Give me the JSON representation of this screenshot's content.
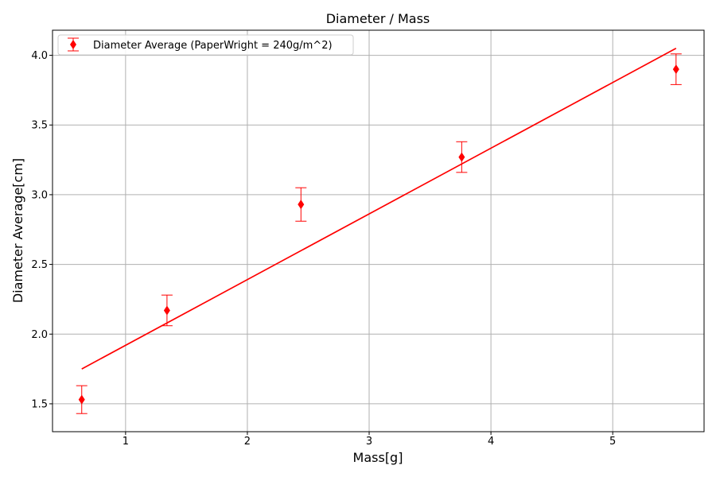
{
  "chart_data": {
    "type": "scatter",
    "title": "Diameter / Mass",
    "xlabel": "Mass[g]",
    "ylabel": "Diameter Average[cm]",
    "xlim": [
      0.4,
      5.75
    ],
    "ylim": [
      1.3,
      4.18
    ],
    "xticks": [
      1,
      2,
      3,
      4,
      5
    ],
    "yticks": [
      1.5,
      2.0,
      2.5,
      3.0,
      3.5,
      4.0
    ],
    "xtick_labels": [
      "1",
      "2",
      "3",
      "4",
      "5"
    ],
    "ytick_labels": [
      "1.5",
      "2.0",
      "2.5",
      "3.0",
      "3.5",
      "4.0"
    ],
    "grid": true,
    "legend_position": "top-left",
    "colors": {
      "series": "#ff0000",
      "fit": "#ff0000",
      "grid": "#b0b0b0"
    },
    "series": [
      {
        "name": "Diameter Average (PaperWright = 240g/m^2)",
        "marker": "diamond",
        "x": [
          0.64,
          1.34,
          2.44,
          3.76,
          5.52
        ],
        "y": [
          1.53,
          2.17,
          2.93,
          3.27,
          3.9
        ],
        "yerr": [
          0.1,
          0.11,
          0.12,
          0.11,
          0.11
        ]
      }
    ],
    "fit_line": {
      "x": [
        0.64,
        5.52
      ],
      "y": [
        1.75,
        4.05
      ]
    }
  }
}
